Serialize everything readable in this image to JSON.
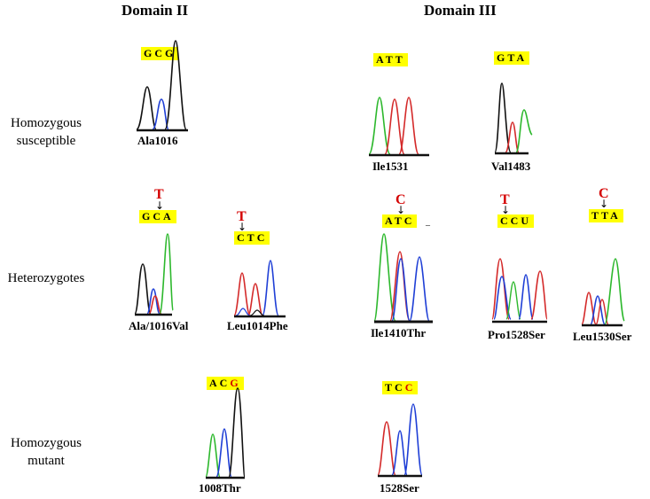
{
  "headers": {
    "domain2": "Domain II",
    "domain3": "Domain III"
  },
  "row_labels": {
    "row1": [
      "Homozygous",
      "susceptible"
    ],
    "row2": [
      "Heterozygotes"
    ],
    "row3": [
      "Homozygous",
      "mutant"
    ]
  },
  "panels": [
    {
      "id": "ala1016",
      "codon": [
        "G",
        "C",
        "G"
      ],
      "mutated_index": -1,
      "mutation_base": "",
      "caption": "Ala1016"
    },
    {
      "id": "ile1531",
      "codon": [
        "A",
        "T",
        "T"
      ],
      "mutated_index": -1,
      "mutation_base": "",
      "caption": "Ile1531"
    },
    {
      "id": "val1483",
      "codon": [
        "G",
        "T",
        "A"
      ],
      "mutated_index": -1,
      "mutation_base": "",
      "caption": "Val1483"
    },
    {
      "id": "ala1016val",
      "codon": [
        "G",
        "C",
        "A"
      ],
      "mutated_index": 1,
      "mutation_base": "T",
      "caption": "Ala/1016Val"
    },
    {
      "id": "leu1014phe",
      "codon": [
        "C",
        "T",
        "C"
      ],
      "mutated_index": 0,
      "mutation_base": "T",
      "caption": "Leu1014Phe"
    },
    {
      "id": "ile1410thr",
      "codon": [
        "A",
        "T",
        "C"
      ],
      "mutated_index": 1,
      "mutation_base": "C",
      "caption": "Ile1410Thr"
    },
    {
      "id": "pro1528ser",
      "codon": [
        "C",
        "C",
        "U"
      ],
      "mutated_index": 0,
      "mutation_base": "T",
      "caption": "Pro1528Ser"
    },
    {
      "id": "leu1530ser",
      "codon": [
        "T",
        "T",
        "A"
      ],
      "mutated_index": 1,
      "mutation_base": "C",
      "caption": "Leu1530Ser"
    },
    {
      "id": "thr1008",
      "codon": [
        "A",
        "C",
        "G"
      ],
      "mutated_index": 2,
      "mutation_base": "",
      "caption": "1008Thr"
    },
    {
      "id": "ser1528",
      "codon": [
        "T",
        "C",
        "C"
      ],
      "mutated_index": 2,
      "mutation_base": "",
      "caption": "1528Ser"
    }
  ],
  "colors": {
    "A": "#2db82d",
    "C": "#1f3fd6",
    "G": "#111111",
    "T": "#d42a2a",
    "highlight": "#ffff00",
    "mutation": "#d40000"
  }
}
